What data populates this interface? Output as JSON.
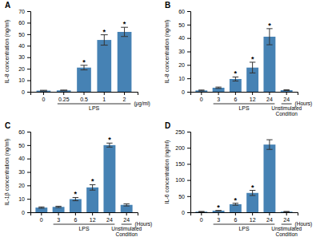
{
  "chart_data": [
    {
      "type": "bar",
      "title": "A",
      "ylabel": "IL-8 concentration (ng/ml)",
      "xlabel": "(μg/ml)",
      "categories": [
        "0",
        "0.25",
        "0.5",
        "1",
        "2"
      ],
      "values": [
        1.0,
        1.2,
        21.0,
        45.0,
        52.0
      ],
      "errors": [
        0.3,
        0.3,
        2.0,
        4.5,
        4.0
      ],
      "significant": [
        false,
        false,
        true,
        true,
        true
      ],
      "significance_mark": "*",
      "annotations": [
        {
          "text": "LPS",
          "bars": [
            1,
            2,
            3,
            4
          ]
        }
      ],
      "ylim": [
        0,
        70
      ],
      "yticks": [
        0,
        10,
        20,
        30,
        40,
        50,
        60,
        70
      ],
      "grid": false
    },
    {
      "type": "bar",
      "title": "B",
      "ylabel": "IL-8 concentration (ng/ml)",
      "xlabel": "(Hours)",
      "categories": [
        "0",
        "3",
        "6",
        "12",
        "24",
        "24"
      ],
      "values": [
        1.0,
        3.0,
        9.5,
        18.0,
        41.0,
        1.2
      ],
      "errors": [
        0.3,
        0.5,
        1.5,
        4.0,
        6.0,
        0.3
      ],
      "significant": [
        false,
        false,
        true,
        true,
        true,
        false
      ],
      "significance_mark": "*",
      "annotations": [
        {
          "text": "LPS",
          "bars": [
            1,
            2,
            3,
            4
          ]
        },
        {
          "text": "Unstimulated\nCondition",
          "bars": [
            5
          ]
        }
      ],
      "ylim": [
        0,
        60
      ],
      "yticks": [
        0,
        10,
        20,
        30,
        40,
        50,
        60
      ],
      "grid": false
    },
    {
      "type": "bar",
      "title": "C",
      "ylabel": "IL-1β concentration (ng/ml)",
      "xlabel": "(Hours)",
      "categories": [
        "0",
        "3",
        "6",
        "12",
        "24",
        "24"
      ],
      "values": [
        3.5,
        4.0,
        9.8,
        18.5,
        50.0,
        5.5
      ],
      "errors": [
        0.5,
        0.5,
        1.2,
        2.0,
        1.5,
        0.8
      ],
      "significant": [
        false,
        false,
        true,
        true,
        true,
        false
      ],
      "significance_mark": "*",
      "annotations": [
        {
          "text": "LPS",
          "bars": [
            1,
            2,
            3,
            4
          ]
        },
        {
          "text": "Unstimulated\nCondition",
          "bars": [
            5
          ]
        }
      ],
      "ylim": [
        0,
        60
      ],
      "yticks": [
        0,
        10,
        20,
        30,
        40,
        50,
        60
      ],
      "grid": false
    },
    {
      "type": "bar",
      "title": "D",
      "ylabel": "IL-6 concentration (ng/ml)",
      "xlabel": "(Hours)",
      "categories": [
        "0",
        "3",
        "6",
        "12",
        "24",
        "24"
      ],
      "values": [
        2.0,
        5.0,
        25.0,
        60.0,
        210.0,
        2.0
      ],
      "errors": [
        0.5,
        0.5,
        3.0,
        8.0,
        15.0,
        0.5
      ],
      "significant": [
        false,
        true,
        true,
        true,
        false,
        false
      ],
      "significance_mark": "*",
      "annotations": [
        {
          "text": "LPS",
          "bars": [
            1,
            2,
            3,
            4
          ]
        },
        {
          "text": "Unstimulated\nCondition",
          "bars": [
            5
          ]
        }
      ],
      "ylim": [
        0,
        250
      ],
      "yticks": [
        0,
        50,
        100,
        150,
        200,
        250
      ],
      "grid": false
    }
  ]
}
